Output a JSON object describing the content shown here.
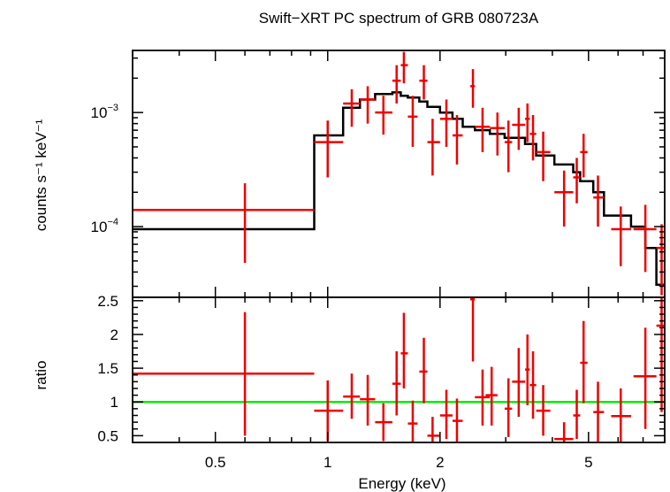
{
  "chart_data": {
    "type": "scatter",
    "title": "Swift−XRT PC spectrum of GRB 080723A",
    "xlabel": "Energy (keV)",
    "xscale": "log",
    "xlim": [
      0.3,
      8.0
    ],
    "xticks": [
      {
        "v": 0.5,
        "label": "0.5"
      },
      {
        "v": 1,
        "label": "1"
      },
      {
        "v": 2,
        "label": "2"
      },
      {
        "v": 5,
        "label": "5"
      }
    ],
    "colors": {
      "data": "#ee0000",
      "model": "#000000",
      "unity": "#00ee00",
      "axes": "#000000"
    },
    "panels": [
      {
        "id": "spectrum",
        "ylabel": "counts s⁻¹ keV⁻¹",
        "yscale": "log",
        "ylim": [
          2.4e-05,
          0.0035
        ],
        "yticks": [
          {
            "v": 0.001,
            "base": "10",
            "exp": "−3"
          },
          {
            "v": 0.0001,
            "base": "10",
            "exp": "−4"
          }
        ],
        "series": [
          {
            "kind": "data",
            "points": [
              {
                "x": 0.6,
                "xlo": 0.3,
                "xhi": 0.92,
                "y": 0.00014,
                "ylo": 4.8e-05,
                "yhi": 0.00024
              },
              {
                "x": 1.0,
                "xlo": 0.92,
                "xhi": 1.1,
                "y": 0.00055,
                "ylo": 0.00027,
                "yhi": 0.00085
              },
              {
                "x": 1.16,
                "xlo": 1.1,
                "xhi": 1.22,
                "y": 0.0012,
                "ylo": 0.00075,
                "yhi": 0.0016
              },
              {
                "x": 1.28,
                "xlo": 1.22,
                "xhi": 1.34,
                "y": 0.0013,
                "ylo": 0.0008,
                "yhi": 0.0017
              },
              {
                "x": 1.41,
                "xlo": 1.34,
                "xhi": 1.49,
                "y": 0.001,
                "ylo": 0.00064,
                "yhi": 0.0014
              },
              {
                "x": 1.53,
                "xlo": 1.49,
                "xhi": 1.57,
                "y": 0.0019,
                "ylo": 0.0012,
                "yhi": 0.0026
              },
              {
                "x": 1.6,
                "xlo": 1.57,
                "xhi": 1.64,
                "y": 0.0026,
                "ylo": 0.0018,
                "yhi": 0.0034
              },
              {
                "x": 1.69,
                "xlo": 1.64,
                "xhi": 1.74,
                "y": 0.00092,
                "ylo": 0.0005,
                "yhi": 0.0014
              },
              {
                "x": 1.81,
                "xlo": 1.76,
                "xhi": 1.85,
                "y": 0.0019,
                "ylo": 0.0013,
                "yhi": 0.0026
              },
              {
                "x": 1.91,
                "xlo": 1.85,
                "xhi": 2.0,
                "y": 0.00055,
                "ylo": 0.00028,
                "yhi": 0.00088
              },
              {
                "x": 2.08,
                "xlo": 2.0,
                "xhi": 2.16,
                "y": 0.00088,
                "ylo": 0.0005,
                "yhi": 0.0013
              },
              {
                "x": 2.22,
                "xlo": 2.16,
                "xhi": 2.3,
                "y": 0.00063,
                "ylo": 0.00035,
                "yhi": 0.00095
              },
              {
                "x": 2.45,
                "xlo": 2.41,
                "xhi": 2.48,
                "y": 0.0017,
                "ylo": 0.0011,
                "yhi": 0.0024
              },
              {
                "x": 2.6,
                "xlo": 2.48,
                "xhi": 2.72,
                "y": 0.00075,
                "ylo": 0.00045,
                "yhi": 0.0011
              },
              {
                "x": 2.85,
                "xlo": 2.72,
                "xhi": 2.98,
                "y": 0.00073,
                "ylo": 0.00042,
                "yhi": 0.001
              },
              {
                "x": 3.05,
                "xlo": 2.98,
                "xhi": 3.12,
                "y": 0.00055,
                "ylo": 0.0003,
                "yhi": 0.00085
              },
              {
                "x": 3.25,
                "xlo": 3.12,
                "xhi": 3.38,
                "y": 0.00078,
                "ylo": 0.00047,
                "yhi": 0.0011
              },
              {
                "x": 3.43,
                "xlo": 3.38,
                "xhi": 3.48,
                "y": 0.00088,
                "ylo": 0.00055,
                "yhi": 0.0012
              },
              {
                "x": 3.55,
                "xlo": 3.48,
                "xhi": 3.62,
                "y": 0.00065,
                "ylo": 0.00038,
                "yhi": 0.00095
              },
              {
                "x": 3.78,
                "xlo": 3.62,
                "xhi": 3.95,
                "y": 0.00045,
                "ylo": 0.00025,
                "yhi": 0.00068
              },
              {
                "x": 4.3,
                "xlo": 4.05,
                "xhi": 4.55,
                "y": 0.0002,
                "ylo": 0.0001,
                "yhi": 0.00031
              },
              {
                "x": 4.65,
                "xlo": 4.55,
                "xhi": 4.75,
                "y": 0.00027,
                "ylo": 0.00016,
                "yhi": 0.0004
              },
              {
                "x": 4.85,
                "xlo": 4.75,
                "xhi": 4.97,
                "y": 0.00045,
                "ylo": 0.00027,
                "yhi": 0.00065
              },
              {
                "x": 5.3,
                "xlo": 5.15,
                "xhi": 5.5,
                "y": 0.00018,
                "ylo": 0.0001,
                "yhi": 0.00028
              },
              {
                "x": 6.1,
                "xlo": 5.75,
                "xhi": 6.5,
                "y": 9.5e-05,
                "ylo": 4.5e-05,
                "yhi": 0.00015
              },
              {
                "x": 7.1,
                "xlo": 6.6,
                "xhi": 7.6,
                "y": 9.5e-05,
                "ylo": 4e-05,
                "yhi": 0.000155
              },
              {
                "x": 7.85,
                "xlo": 7.6,
                "xhi": 8.0,
                "y": 6.5e-05,
                "ylo": 2.5e-05,
                "yhi": 0.000105
              }
            ]
          },
          {
            "kind": "model",
            "steps": [
              {
                "x0": 0.3,
                "x1": 0.92,
                "y": 9.5e-05
              },
              {
                "x0": 0.92,
                "x1": 1.1,
                "y": 0.00063
              },
              {
                "x0": 1.1,
                "x1": 1.22,
                "y": 0.0011
              },
              {
                "x0": 1.22,
                "x1": 1.34,
                "y": 0.0013
              },
              {
                "x0": 1.34,
                "x1": 1.49,
                "y": 0.00145
              },
              {
                "x0": 1.49,
                "x1": 1.57,
                "y": 0.0015
              },
              {
                "x0": 1.57,
                "x1": 1.64,
                "y": 0.0014
              },
              {
                "x0": 1.64,
                "x1": 1.76,
                "y": 0.00135
              },
              {
                "x0": 1.76,
                "x1": 1.85,
                "y": 0.00125
              },
              {
                "x0": 1.85,
                "x1": 2.0,
                "y": 0.00112
              },
              {
                "x0": 2.0,
                "x1": 2.16,
                "y": 0.001
              },
              {
                "x0": 2.16,
                "x1": 2.3,
                "y": 0.00088
              },
              {
                "x0": 2.3,
                "x1": 2.48,
                "y": 0.00075
              },
              {
                "x0": 2.48,
                "x1": 2.72,
                "y": 0.0007
              },
              {
                "x0": 2.72,
                "x1": 2.98,
                "y": 0.00065
              },
              {
                "x0": 2.98,
                "x1": 3.38,
                "y": 0.0006
              },
              {
                "x0": 3.38,
                "x1": 3.62,
                "y": 0.00053
              },
              {
                "x0": 3.62,
                "x1": 4.05,
                "y": 0.00042
              },
              {
                "x0": 4.05,
                "x1": 4.55,
                "y": 0.00035
              },
              {
                "x0": 4.55,
                "x1": 4.75,
                "y": 0.0003
              },
              {
                "x0": 4.75,
                "x1": 5.15,
                "y": 0.00025
              },
              {
                "x0": 5.15,
                "x1": 5.5,
                "y": 0.0002
              },
              {
                "x0": 5.5,
                "x1": 6.5,
                "y": 0.000125
              },
              {
                "x0": 6.5,
                "x1": 7.1,
                "y": 0.0001
              },
              {
                "x0": 7.1,
                "x1": 7.6,
                "y": 6.5e-05
              },
              {
                "x0": 7.6,
                "x1": 8.0,
                "y": 3.1e-05
              }
            ]
          }
        ]
      },
      {
        "id": "ratio",
        "ylabel": "ratio",
        "yscale": "linear",
        "ylim": [
          0.4,
          2.55
        ],
        "yticks": [
          {
            "v": 0.5,
            "label": "0.5"
          },
          {
            "v": 1,
            "label": "1"
          },
          {
            "v": 1.5,
            "label": "1.5"
          },
          {
            "v": 2,
            "label": "2"
          },
          {
            "v": 2.5,
            "label": "2.5"
          }
        ],
        "unity": 1,
        "series": [
          {
            "kind": "data",
            "points": [
              {
                "x": 0.6,
                "xlo": 0.3,
                "xhi": 0.92,
                "y": 1.42,
                "ylo": 0.5,
                "yhi": 2.33
              },
              {
                "x": 1.0,
                "xlo": 0.92,
                "xhi": 1.1,
                "y": 0.87,
                "ylo": 0.42,
                "yhi": 1.32
              },
              {
                "x": 1.16,
                "xlo": 1.1,
                "xhi": 1.22,
                "y": 1.08,
                "ylo": 0.75,
                "yhi": 1.42
              },
              {
                "x": 1.28,
                "xlo": 1.22,
                "xhi": 1.34,
                "y": 1.04,
                "ylo": 0.65,
                "yhi": 1.4
              },
              {
                "x": 1.41,
                "xlo": 1.34,
                "xhi": 1.49,
                "y": 0.7,
                "ylo": 0.42,
                "yhi": 0.98
              },
              {
                "x": 1.53,
                "xlo": 1.49,
                "xhi": 1.57,
                "y": 1.27,
                "ylo": 0.8,
                "yhi": 1.75
              },
              {
                "x": 1.6,
                "xlo": 1.57,
                "xhi": 1.64,
                "y": 1.72,
                "ylo": 1.2,
                "yhi": 2.32
              },
              {
                "x": 1.69,
                "xlo": 1.64,
                "xhi": 1.74,
                "y": 0.68,
                "ylo": 0.4,
                "yhi": 1.02
              },
              {
                "x": 1.81,
                "xlo": 1.76,
                "xhi": 1.85,
                "y": 1.45,
                "ylo": 0.98,
                "yhi": 1.95
              },
              {
                "x": 1.91,
                "xlo": 1.85,
                "xhi": 2.0,
                "y": 0.5,
                "ylo": 0.4,
                "yhi": 0.78
              },
              {
                "x": 2.08,
                "xlo": 2.0,
                "xhi": 2.16,
                "y": 0.8,
                "ylo": 0.45,
                "yhi": 1.18
              },
              {
                "x": 2.22,
                "xlo": 2.16,
                "xhi": 2.3,
                "y": 0.72,
                "ylo": 0.4,
                "yhi": 1.05
              },
              {
                "x": 2.45,
                "xlo": 2.41,
                "xhi": 2.48,
                "y": 2.52,
                "ylo": 1.6,
                "yhi": 2.55
              },
              {
                "x": 2.6,
                "xlo": 2.48,
                "xhi": 2.72,
                "y": 1.07,
                "ylo": 0.65,
                "yhi": 1.48
              },
              {
                "x": 2.75,
                "xlo": 2.65,
                "xhi": 2.85,
                "y": 1.1,
                "ylo": 0.65,
                "yhi": 1.52
              },
              {
                "x": 3.05,
                "xlo": 2.98,
                "xhi": 3.12,
                "y": 0.9,
                "ylo": 0.48,
                "yhi": 1.35
              },
              {
                "x": 3.25,
                "xlo": 3.12,
                "xhi": 3.38,
                "y": 1.3,
                "ylo": 0.78,
                "yhi": 1.8
              },
              {
                "x": 3.43,
                "xlo": 3.38,
                "xhi": 3.48,
                "y": 1.48,
                "ylo": 0.95,
                "yhi": 2.0
              },
              {
                "x": 3.55,
                "xlo": 3.48,
                "xhi": 3.62,
                "y": 1.25,
                "ylo": 0.75,
                "yhi": 1.75
              },
              {
                "x": 3.78,
                "xlo": 3.62,
                "xhi": 3.95,
                "y": 0.87,
                "ylo": 0.5,
                "yhi": 1.25
              },
              {
                "x": 4.3,
                "xlo": 4.05,
                "xhi": 4.55,
                "y": 0.45,
                "ylo": 0.4,
                "yhi": 0.7
              },
              {
                "x": 4.65,
                "xlo": 4.55,
                "xhi": 4.75,
                "y": 0.8,
                "ylo": 0.45,
                "yhi": 1.18
              },
              {
                "x": 4.85,
                "xlo": 4.75,
                "xhi": 4.97,
                "y": 1.58,
                "ylo": 0.98,
                "yhi": 2.2
              },
              {
                "x": 5.3,
                "xlo": 5.15,
                "xhi": 5.5,
                "y": 0.85,
                "ylo": 0.4,
                "yhi": 1.3
              },
              {
                "x": 6.1,
                "xlo": 5.75,
                "xhi": 6.5,
                "y": 0.79,
                "ylo": 0.4,
                "yhi": 1.2
              },
              {
                "x": 7.1,
                "xlo": 6.6,
                "xhi": 7.6,
                "y": 1.38,
                "ylo": 0.6,
                "yhi": 2.1
              },
              {
                "x": 7.85,
                "xlo": 7.6,
                "xhi": 8.0,
                "y": 2.13,
                "ylo": 0.85,
                "yhi": 2.55
              }
            ]
          }
        ]
      }
    ]
  }
}
